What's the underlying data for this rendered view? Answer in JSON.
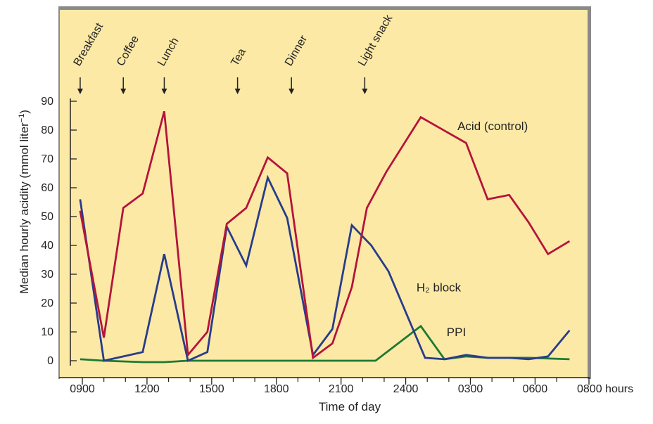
{
  "chart_data": {
    "type": "line",
    "xlabel": "Time of day",
    "ylabel": "Median hourly acidity (mmol liter",
    "ylabel_superscript": "−1",
    "ylabel_close": ")",
    "ylim": [
      0,
      90
    ],
    "yticks": [
      0,
      10,
      20,
      30,
      40,
      50,
      60,
      70,
      80,
      90
    ],
    "xlim": [
      0,
      23.5
    ],
    "xtick_labels": [
      {
        "x": 0,
        "label": "0900"
      },
      {
        "x": 3,
        "label": "1200"
      },
      {
        "x": 6,
        "label": "1500"
      },
      {
        "x": 9,
        "label": "1800"
      },
      {
        "x": 12,
        "label": "2100"
      },
      {
        "x": 15,
        "label": "2400"
      },
      {
        "x": 18,
        "label": "0300"
      },
      {
        "x": 21,
        "label": "0600"
      },
      {
        "x": 23.5,
        "label": "0800 hours"
      }
    ],
    "minor_ticks": [
      1,
      2,
      4,
      5,
      7,
      8,
      10,
      11,
      13,
      14,
      16,
      17,
      19,
      20,
      22
    ],
    "meals": [
      {
        "label": "Breakfast",
        "x": -0.1
      },
      {
        "label": "Coffee",
        "x": 1.9
      },
      {
        "label": "Lunch",
        "x": 3.8
      },
      {
        "label": "Tea",
        "x": 7.2
      },
      {
        "label": "Dinner",
        "x": 9.7
      },
      {
        "label": "Light snack",
        "x": 13.1
      }
    ],
    "series": [
      {
        "name": "Acid (control)",
        "color": "#b5143c",
        "points": [
          [
            -0.1,
            52
          ],
          [
            1,
            8
          ],
          [
            1.9,
            53
          ],
          [
            2.8,
            58
          ],
          [
            3.8,
            86.5
          ],
          [
            4.9,
            2
          ],
          [
            5.8,
            10
          ],
          [
            6.7,
            47.5
          ],
          [
            7.6,
            53
          ],
          [
            8.6,
            70.5
          ],
          [
            9.5,
            65
          ],
          [
            10.7,
            1
          ],
          [
            11.6,
            6
          ],
          [
            12.5,
            25.5
          ],
          [
            13.2,
            53
          ],
          [
            14.1,
            65.5
          ],
          [
            15.7,
            84.5
          ],
          [
            17.8,
            75.5
          ],
          [
            18.8,
            56
          ],
          [
            19.8,
            57.5
          ],
          [
            20.7,
            48
          ],
          [
            21.6,
            37
          ],
          [
            22.6,
            41.5
          ]
        ],
        "label_pos": [
          17.4,
          80
        ]
      },
      {
        "name": "H₂ block",
        "color": "#283c8c",
        "points": [
          [
            -0.1,
            56
          ],
          [
            1,
            0
          ],
          [
            1.9,
            1.5
          ],
          [
            2.8,
            3
          ],
          [
            3.8,
            37
          ],
          [
            4.9,
            0
          ],
          [
            5.8,
            3
          ],
          [
            6.7,
            46.5
          ],
          [
            7.6,
            33
          ],
          [
            8.6,
            63.5
          ],
          [
            9.5,
            49.5
          ],
          [
            10.7,
            2
          ],
          [
            11.6,
            11
          ],
          [
            12.5,
            47
          ],
          [
            13.4,
            40
          ],
          [
            14.2,
            31
          ],
          [
            15.9,
            1
          ],
          [
            16.8,
            0.5
          ],
          [
            17.8,
            2
          ],
          [
            18.8,
            1
          ],
          [
            19.8,
            1
          ],
          [
            20.7,
            0.5
          ],
          [
            21.6,
            1.5
          ],
          [
            22.6,
            10.5
          ]
        ],
        "label_pos": [
          15.5,
          24
        ]
      },
      {
        "name": "PPI",
        "color": "#1e7a32",
        "points": [
          [
            -0.1,
            0.5
          ],
          [
            1,
            0
          ],
          [
            2.8,
            -0.5
          ],
          [
            3.8,
            -0.5
          ],
          [
            4.9,
            0
          ],
          [
            6.7,
            0
          ],
          [
            9.5,
            0
          ],
          [
            12.5,
            0
          ],
          [
            13.6,
            0
          ],
          [
            15.7,
            12
          ],
          [
            16.8,
            0.5
          ],
          [
            17.8,
            1.5
          ],
          [
            18.8,
            1
          ],
          [
            20.7,
            1
          ],
          [
            22.6,
            0.5
          ]
        ],
        "label_pos": [
          16.9,
          8.5
        ]
      }
    ]
  }
}
